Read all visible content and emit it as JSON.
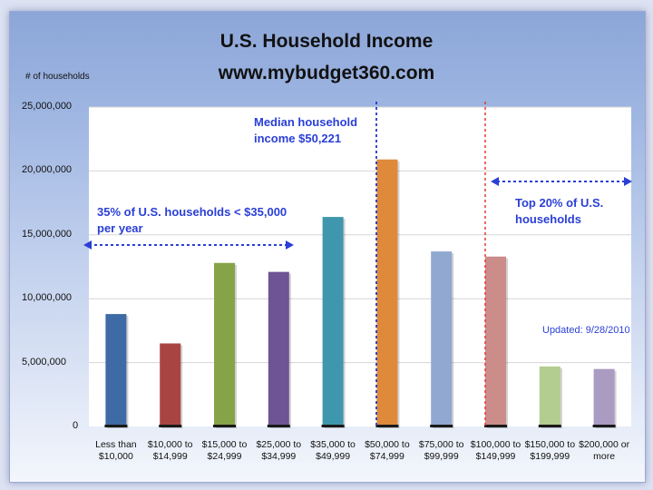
{
  "chart_data": {
    "type": "bar",
    "title": "U.S. Household Income",
    "subtitle": "www.mybudget360.com",
    "ylabel": "# of households",
    "ylim": [
      0,
      25000000
    ],
    "yticks": [
      "0",
      "5,000,000",
      "10,000,000",
      "15,000,000",
      "20,000,000",
      "25,000,000"
    ],
    "categories": [
      [
        "Less than",
        "$10,000"
      ],
      [
        "$10,000 to",
        "$14,999"
      ],
      [
        "$15,000 to",
        "$24,999"
      ],
      [
        "$25,000 to",
        "$34,999"
      ],
      [
        "$35,000 to",
        "$49,999"
      ],
      [
        "$50,000 to",
        "$74,999"
      ],
      [
        "$75,000 to",
        "$99,999"
      ],
      [
        "$100,000 to",
        "$149,999"
      ],
      [
        "$150,000 to",
        "$199,999"
      ],
      [
        "$200,000 or",
        "more"
      ]
    ],
    "values": [
      8800000,
      6500000,
      12800000,
      12100000,
      16400000,
      20900000,
      13700000,
      13300000,
      4700000,
      4500000
    ],
    "colors": [
      "#3e6aa5",
      "#a84543",
      "#86a447",
      "#6e5494",
      "#3f97ae",
      "#de8a3a",
      "#91a8d0",
      "#cc8c8a",
      "#b3cc8f",
      "#a99bc2"
    ],
    "annotations": {
      "median_line1": "Median household",
      "median_line2": "income $50,221",
      "lower_line1": "35% of U.S. households < $35,000",
      "lower_line2": "per year",
      "top_line1": "Top 20% of U.S.",
      "top_line2": "households",
      "updated": "Updated:  9/28/2010"
    },
    "grid": true
  }
}
